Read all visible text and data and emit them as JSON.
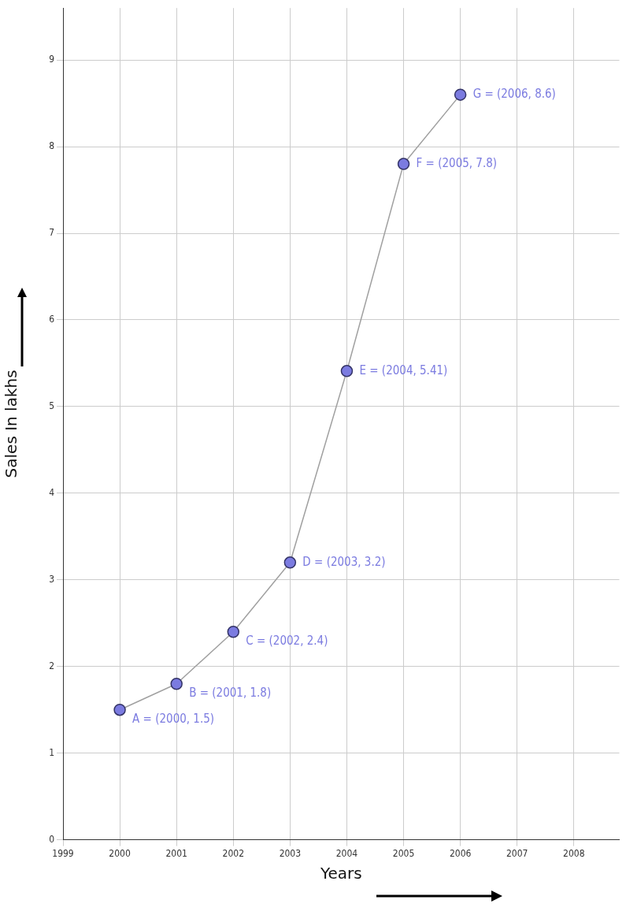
{
  "chart_data": {
    "type": "line",
    "xlabel": "Years",
    "ylabel": "Sales In lakhs",
    "x": [
      2000,
      2001,
      2002,
      2003,
      2004,
      2005,
      2006
    ],
    "series": [
      {
        "color": "#7b7be0",
        "values": [
          1.5,
          1.8,
          2.4,
          3.2,
          5.41,
          7.8,
          8.6
        ]
      }
    ],
    "xlim": [
      1999,
      2008.8
    ],
    "ylim": [
      0,
      9.6
    ],
    "xticks": [
      1999,
      2000,
      2001,
      2002,
      2003,
      2004,
      2005,
      2006,
      2007,
      2008
    ],
    "yticks": [
      0,
      1,
      2,
      3,
      4,
      5,
      6,
      7,
      8,
      9
    ],
    "grid": true,
    "marker": "circle",
    "line_style": "solid",
    "legend": false,
    "annotations": [
      {
        "text": "A = (2000, 1.5)",
        "x": 2000,
        "y": 1.5
      },
      {
        "text": "B = (2001, 1.8)",
        "x": 2001,
        "y": 1.8
      },
      {
        "text": "C = (2002, 2.4)",
        "x": 2002,
        "y": 2.4
      },
      {
        "text": "D = (2003, 3.2)",
        "x": 2003,
        "y": 3.2
      },
      {
        "text": "E = (2004, 5.41)",
        "x": 2004,
        "y": 5.41
      },
      {
        "text": "F = (2005, 7.8)",
        "x": 2005,
        "y": 7.8
      },
      {
        "text": "G = (2006, 8.6)",
        "x": 2006,
        "y": 8.6
      }
    ]
  }
}
